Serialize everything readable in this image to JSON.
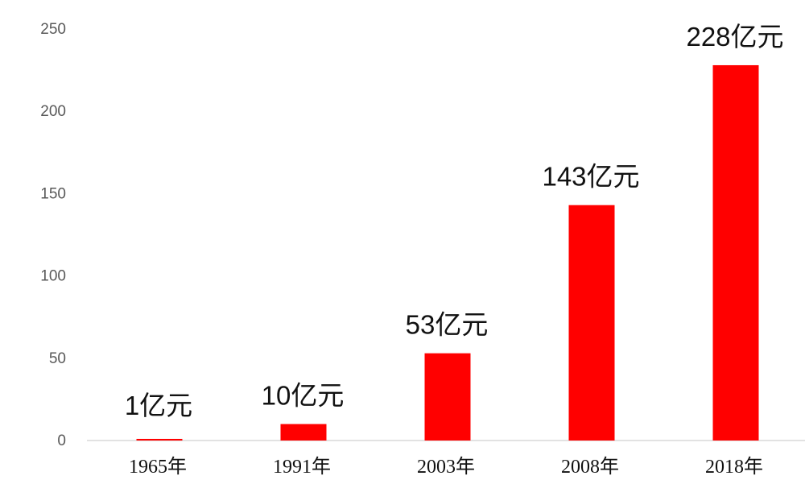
{
  "chart_data": {
    "type": "bar",
    "categories": [
      "1965年",
      "1991年",
      "2003年",
      "2008年",
      "2018年"
    ],
    "values": [
      1,
      10,
      53,
      143,
      228
    ],
    "data_labels": [
      "1亿元",
      "10亿元",
      "53亿元",
      "143亿元",
      "228亿元"
    ],
    "yticks": [
      0,
      50,
      100,
      150,
      200,
      250
    ],
    "ylim": [
      0,
      250
    ],
    "grid": false,
    "legend": "none",
    "bar_color": "#ff0000",
    "baseline_color": "#d9d9d9"
  }
}
